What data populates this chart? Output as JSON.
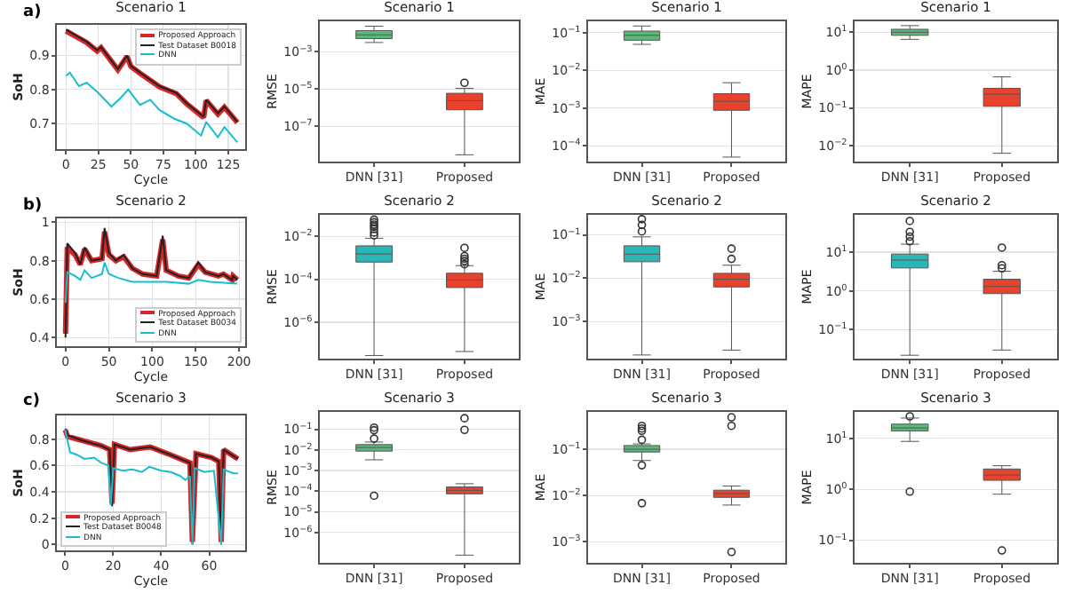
{
  "chart_data": [
    {
      "type": "line",
      "title": "Scenario 1",
      "xlabel": "Cycle",
      "ylabel": "SoH",
      "annotations": [
        "a)"
      ],
      "xlim": [
        -7,
        138
      ],
      "ylim": [
        0.625,
        0.99
      ],
      "xticks": [
        0,
        25,
        50,
        75,
        100,
        125
      ],
      "yticks": [
        0.7,
        0.8,
        0.9
      ],
      "grid": true,
      "legend": "top right",
      "series": [
        {
          "name": "Proposed Approach",
          "color": "#d62728",
          "x": [
            0,
            16,
            24,
            27,
            40,
            47,
            50,
            57,
            72,
            85,
            93,
            106,
            108,
            117,
            122,
            132
          ],
          "values": [
            0.972,
            0.938,
            0.913,
            0.923,
            0.858,
            0.897,
            0.868,
            0.848,
            0.808,
            0.788,
            0.758,
            0.718,
            0.768,
            0.728,
            0.748,
            0.703
          ]
        },
        {
          "name": "Test Dataset B0018",
          "color": "#222222",
          "x": [
            0,
            16,
            24,
            27,
            40,
            47,
            50,
            57,
            72,
            85,
            93,
            106,
            108,
            117,
            122,
            132
          ],
          "values": [
            0.976,
            0.94,
            0.915,
            0.925,
            0.86,
            0.9,
            0.87,
            0.85,
            0.81,
            0.79,
            0.76,
            0.72,
            0.77,
            0.73,
            0.75,
            0.705
          ]
        },
        {
          "name": "DNN",
          "color": "#17becf",
          "x": [
            0,
            3,
            10,
            16,
            25,
            35,
            42,
            48,
            57,
            65,
            72,
            83,
            93,
            104,
            108,
            117,
            122,
            132
          ],
          "values": [
            0.84,
            0.85,
            0.81,
            0.82,
            0.79,
            0.75,
            0.775,
            0.8,
            0.755,
            0.77,
            0.74,
            0.715,
            0.7,
            0.665,
            0.705,
            0.66,
            0.69,
            0.645
          ]
        }
      ]
    },
    {
      "type": "box",
      "title": "Scenario 1",
      "ylabel": "RMSE",
      "categories": [
        "DNN [31]",
        "Proposed"
      ],
      "log": true,
      "grid": "y",
      "ylim": [
        1.3e-09,
        0.044
      ],
      "yticks": [
        {
          "value": 0.001,
          "label": "10$^{−3}$"
        },
        {
          "value": 1e-05,
          "label": "10$^{−5}$"
        },
        {
          "value": 1e-07,
          "label": "10$^{−7}$"
        }
      ],
      "colors": [
        "#5cb87a",
        "#e8412c"
      ],
      "boxes": [
        {
          "low": 0.0032,
          "q1": 0.0052,
          "median": 0.0083,
          "q3": 0.014,
          "high": 0.024
        },
        {
          "low": 3e-09,
          "q1": 7.8e-07,
          "median": 2.4e-06,
          "q3": 6e-06,
          "high": 1.1e-05,
          "outliers": [
            2.2e-05
          ]
        }
      ]
    },
    {
      "type": "box",
      "title": "Scenario 1",
      "ylabel": "MAE",
      "categories": [
        "DNN [31]",
        "Proposed"
      ],
      "log": true,
      "grid": "y",
      "ylim": [
        3.8e-05,
        0.2
      ],
      "yticks": [
        {
          "value": 0.1,
          "label": "10$^{−1}$"
        },
        {
          "value": 0.01,
          "label": "10$^{−2}$"
        },
        {
          "value": 0.001,
          "label": "10$^{−3}$"
        },
        {
          "value": 0.0001,
          "label": "10$^{−4}$"
        }
      ],
      "colors": [
        "#5cb87a",
        "#e8412c"
      ],
      "boxes": [
        {
          "low": 0.049,
          "q1": 0.063,
          "median": 0.085,
          "q3": 0.11,
          "high": 0.15
        },
        {
          "low": 5e-05,
          "q1": 0.00087,
          "median": 0.0015,
          "q3": 0.0024,
          "high": 0.0047
        }
      ]
    },
    {
      "type": "box",
      "title": "Scenario 1",
      "ylabel": "MAPE",
      "categories": [
        "DNN [31]",
        "Proposed"
      ],
      "log": true,
      "grid": "y",
      "ylim": [
        0.0038,
        19.5
      ],
      "yticks": [
        {
          "value": 10,
          "label": "10$^{1}$"
        },
        {
          "value": 1,
          "label": "10$^{0}$"
        },
        {
          "value": 0.1,
          "label": "10$^{−1}$"
        },
        {
          "value": 0.01,
          "label": "10$^{−2}$"
        }
      ],
      "colors": [
        "#5cb87a",
        "#e8412c"
      ],
      "boxes": [
        {
          "low": 6.5,
          "q1": 8.3,
          "median": 10,
          "q3": 12,
          "high": 15
        },
        {
          "low": 0.0063,
          "q1": 0.11,
          "median": 0.23,
          "q3": 0.33,
          "high": 0.66
        }
      ]
    },
    {
      "type": "line",
      "title": "Scenario 2",
      "xlabel": "Cycle",
      "ylabel": "SoH",
      "annotations": [
        "b)"
      ],
      "xlim": [
        -10,
        207
      ],
      "ylim": [
        0.355,
        1.02
      ],
      "xticks": [
        0,
        50,
        100,
        150,
        200
      ],
      "yticks": [
        0.4,
        0.6,
        0.8,
        1.0
      ],
      "grid": true,
      "legend": "bottom right",
      "series": [
        {
          "name": "Proposed Approach",
          "color": "#d62728",
          "x": [
            0,
            2,
            11,
            17,
            22,
            30,
            42,
            45,
            50,
            58,
            67,
            77,
            89,
            105,
            112,
            116,
            130,
            142,
            153,
            161,
            176,
            182,
            192,
            193,
            198
          ],
          "values": [
            0.42,
            0.87,
            0.83,
            0.78,
            0.86,
            0.8,
            0.81,
            0.95,
            0.83,
            0.8,
            0.82,
            0.76,
            0.73,
            0.72,
            0.91,
            0.75,
            0.72,
            0.71,
            0.78,
            0.74,
            0.72,
            0.73,
            0.7,
            0.72,
            0.7
          ]
        },
        {
          "name": "Test Dataset B0034",
          "color": "#222222",
          "x": [
            0,
            2,
            11,
            17,
            22,
            30,
            42,
            45,
            50,
            58,
            67,
            77,
            89,
            105,
            112,
            116,
            130,
            142,
            153,
            161,
            176,
            182,
            192,
            193,
            198
          ],
          "values": [
            0.4,
            0.89,
            0.84,
            0.78,
            0.87,
            0.8,
            0.81,
            0.97,
            0.84,
            0.8,
            0.83,
            0.76,
            0.73,
            0.72,
            0.93,
            0.75,
            0.72,
            0.71,
            0.79,
            0.74,
            0.72,
            0.73,
            0.7,
            0.72,
            0.7
          ]
        },
        {
          "name": "DNN",
          "color": "#17becf",
          "x": [
            0,
            2,
            11,
            17,
            22,
            30,
            42,
            45,
            50,
            61,
            77,
            98,
            117,
            142,
            153,
            167,
            198
          ],
          "values": [
            0.58,
            0.74,
            0.72,
            0.7,
            0.75,
            0.71,
            0.73,
            0.79,
            0.73,
            0.71,
            0.69,
            0.69,
            0.69,
            0.68,
            0.7,
            0.69,
            0.68
          ]
        }
      ]
    },
    {
      "type": "box",
      "title": "Scenario 2",
      "ylabel": "RMSE",
      "categories": [
        "DNN [31]",
        "Proposed"
      ],
      "log": true,
      "grid": "y",
      "ylim": [
        2e-08,
        0.1
      ],
      "yticks": [
        {
          "value": 0.01,
          "label": "10$^{−2}$"
        },
        {
          "value": 0.0001,
          "label": "10$^{−4}$"
        },
        {
          "value": 1e-06,
          "label": "10$^{−6}$"
        }
      ],
      "colors": [
        "#2bb5b5",
        "#e8412c"
      ],
      "boxes": [
        {
          "low": 2.8e-08,
          "q1": 0.00063,
          "median": 0.0015,
          "q3": 0.0036,
          "high": 0.0081,
          "outliers": [
            0.06,
            0.045,
            0.035,
            0.028,
            0.022,
            0.015,
            0.011
          ]
        },
        {
          "low": 4.3e-08,
          "q1": 4.1e-05,
          "median": 9.3e-05,
          "q3": 0.00019,
          "high": 0.00043,
          "outliers": [
            0.0029,
            0.0012,
            0.0009,
            0.0007,
            0.0005
          ]
        }
      ]
    },
    {
      "type": "box",
      "title": "Scenario 2",
      "ylabel": "MAE",
      "categories": [
        "DNN [31]",
        "Proposed"
      ],
      "log": true,
      "grid": "y",
      "ylim": [
        0.00014,
        0.29
      ],
      "yticks": [
        {
          "value": 0.1,
          "label": "10$^{−1}$"
        },
        {
          "value": 0.01,
          "label": "10$^{−2}$"
        },
        {
          "value": 0.001,
          "label": "10$^{−3}$"
        }
      ],
      "colors": [
        "#2bb5b5",
        "#e8412c"
      ],
      "boxes": [
        {
          "low": 0.00017,
          "q1": 0.024,
          "median": 0.036,
          "q3": 0.056,
          "high": 0.09,
          "outliers": [
            0.23,
            0.17,
            0.12
          ]
        },
        {
          "low": 0.00022,
          "q1": 0.0063,
          "median": 0.0095,
          "q3": 0.013,
          "high": 0.02,
          "outliers": [
            0.048,
            0.028
          ]
        }
      ]
    },
    {
      "type": "box",
      "title": "Scenario 2",
      "ylabel": "MAPE",
      "categories": [
        "DNN [31]",
        "Proposed"
      ],
      "log": true,
      "grid": "y",
      "ylim": [
        0.018,
        91
      ],
      "yticks": [
        {
          "value": 10,
          "label": "10$^{1}$"
        },
        {
          "value": 1,
          "label": "10$^{0}$"
        },
        {
          "value": 0.1,
          "label": "10$^{−1}$"
        }
      ],
      "colors": [
        "#2bb5b5",
        "#e8412c"
      ],
      "boxes": [
        {
          "low": 0.022,
          "q1": 3.9,
          "median": 6.2,
          "q3": 8.9,
          "high": 16,
          "outliers": [
            63,
            33,
            25,
            19
          ]
        },
        {
          "low": 0.03,
          "q1": 0.85,
          "median": 1.3,
          "q3": 2.0,
          "high": 3.2,
          "outliers": [
            13,
            4.6,
            3.8
          ]
        }
      ]
    },
    {
      "type": "line",
      "title": "Scenario 3",
      "xlabel": "Cycle",
      "ylabel": "SoH",
      "annotations": [
        "c)"
      ],
      "xlim": [
        -3.5,
        75
      ],
      "ylim": [
        -0.045,
        0.98
      ],
      "xticks": [
        0,
        20,
        40,
        60
      ],
      "yticks": [
        0.0,
        0.2,
        0.4,
        0.6,
        0.8
      ],
      "grid": true,
      "legend": "bottom left",
      "series": [
        {
          "name": "Proposed Approach",
          "color": "#d62728",
          "x": [
            0,
            1,
            7,
            15,
            18.5,
            19.5,
            20.5,
            27,
            35.5,
            44,
            52,
            53,
            54.5,
            61,
            64,
            65,
            66,
            72
          ],
          "values": [
            0.87,
            0.82,
            0.79,
            0.75,
            0.72,
            0.31,
            0.76,
            0.72,
            0.74,
            0.68,
            0.62,
            0.02,
            0.69,
            0.66,
            0.63,
            0.02,
            0.72,
            0.65
          ]
        },
        {
          "name": "Test Dataset B0048",
          "color": "#222222",
          "x": [
            0,
            1,
            7,
            15,
            18.5,
            19.5,
            20.5,
            27,
            35.5,
            44,
            52,
            53,
            54.5,
            61,
            64,
            65,
            66,
            72
          ],
          "values": [
            0.88,
            0.83,
            0.79,
            0.75,
            0.72,
            0.29,
            0.76,
            0.72,
            0.74,
            0.68,
            0.62,
            0.0,
            0.69,
            0.66,
            0.63,
            0.0,
            0.72,
            0.65
          ]
        },
        {
          "name": "DNN",
          "color": "#17becf",
          "x": [
            0,
            2,
            5,
            8,
            12,
            15,
            18,
            19,
            20,
            24,
            28,
            32,
            35,
            40,
            44,
            48,
            50,
            52,
            53,
            54,
            58,
            62,
            65,
            66,
            70,
            72
          ],
          "values": [
            0.87,
            0.7,
            0.68,
            0.65,
            0.66,
            0.62,
            0.6,
            0.3,
            0.58,
            0.56,
            0.57,
            0.55,
            0.59,
            0.56,
            0.55,
            0.52,
            0.49,
            0.52,
            0.0,
            0.58,
            0.55,
            0.56,
            0.0,
            0.57,
            0.54,
            0.54
          ]
        }
      ]
    },
    {
      "type": "box",
      "title": "Scenario 3",
      "ylabel": "RMSE",
      "categories": [
        "DNN [31]",
        "Proposed"
      ],
      "log": true,
      "grid": "y",
      "ylim": [
        3.4e-08,
        0.69
      ],
      "yticks": [
        {
          "value": 0.1,
          "label": "10$^{−1}$"
        },
        {
          "value": 0.01,
          "label": "10$^{−2}$"
        },
        {
          "value": 0.001,
          "label": "10$^{−3}$"
        },
        {
          "value": 0.0001,
          "label": "10$^{−4}$"
        },
        {
          "value": 1e-05,
          "label": "10$^{−5}$"
        },
        {
          "value": 1e-06,
          "label": "10$^{−6}$"
        }
      ],
      "colors": [
        "#5cb87a",
        "#e8412c"
      ],
      "boxes": [
        {
          "low": 0.0033,
          "q1": 0.0087,
          "median": 0.013,
          "q3": 0.018,
          "high": 0.024,
          "outliers": [
            0.12,
            0.09,
            0.035,
            6e-05
          ]
        },
        {
          "low": 8e-08,
          "q1": 7.4e-05,
          "median": 0.00011,
          "q3": 0.00016,
          "high": 0.00023,
          "outliers": [
            0.34,
            0.093
          ]
        }
      ]
    },
    {
      "type": "box",
      "title": "Scenario 3",
      "ylabel": "MAE",
      "categories": [
        "DNN [31]",
        "Proposed"
      ],
      "log": true,
      "grid": "y",
      "ylim": [
        0.00035,
        0.64
      ],
      "yticks": [
        {
          "value": 0.1,
          "label": "10$^{−1}$"
        },
        {
          "value": 0.01,
          "label": "10$^{−2}$"
        },
        {
          "value": 0.001,
          "label": "10$^{−3}$"
        }
      ],
      "colors": [
        "#5cb87a",
        "#e8412c"
      ],
      "boxes": [
        {
          "low": 0.057,
          "q1": 0.087,
          "median": 0.1,
          "q3": 0.12,
          "high": 0.13,
          "outliers": [
            0.32,
            0.28,
            0.25,
            0.16,
            0.045,
            0.0068
          ]
        },
        {
          "low": 0.0062,
          "q1": 0.0091,
          "median": 0.011,
          "q3": 0.013,
          "high": 0.016,
          "outliers": [
            0.49,
            0.32,
            0.0006
          ]
        }
      ]
    },
    {
      "type": "box",
      "title": "Scenario 3",
      "ylabel": "MAPE",
      "categories": [
        "DNN [31]",
        "Proposed"
      ],
      "log": true,
      "grid": "y",
      "ylim": [
        0.036,
        33
      ],
      "yticks": [
        {
          "value": 10,
          "label": "10$^{1}$"
        },
        {
          "value": 1,
          "label": "10$^{0}$"
        },
        {
          "value": 0.1,
          "label": "10$^{−1}$"
        }
      ],
      "colors": [
        "#5cb87a",
        "#e8412c"
      ],
      "boxes": [
        {
          "low": 8.7,
          "q1": 14,
          "median": 16,
          "q3": 19,
          "high": 25,
          "outliers": [
            27,
            0.9
          ]
        },
        {
          "low": 0.8,
          "q1": 1.5,
          "median": 1.9,
          "q3": 2.5,
          "high": 2.9,
          "outliers": [
            0.063
          ]
        }
      ]
    }
  ]
}
